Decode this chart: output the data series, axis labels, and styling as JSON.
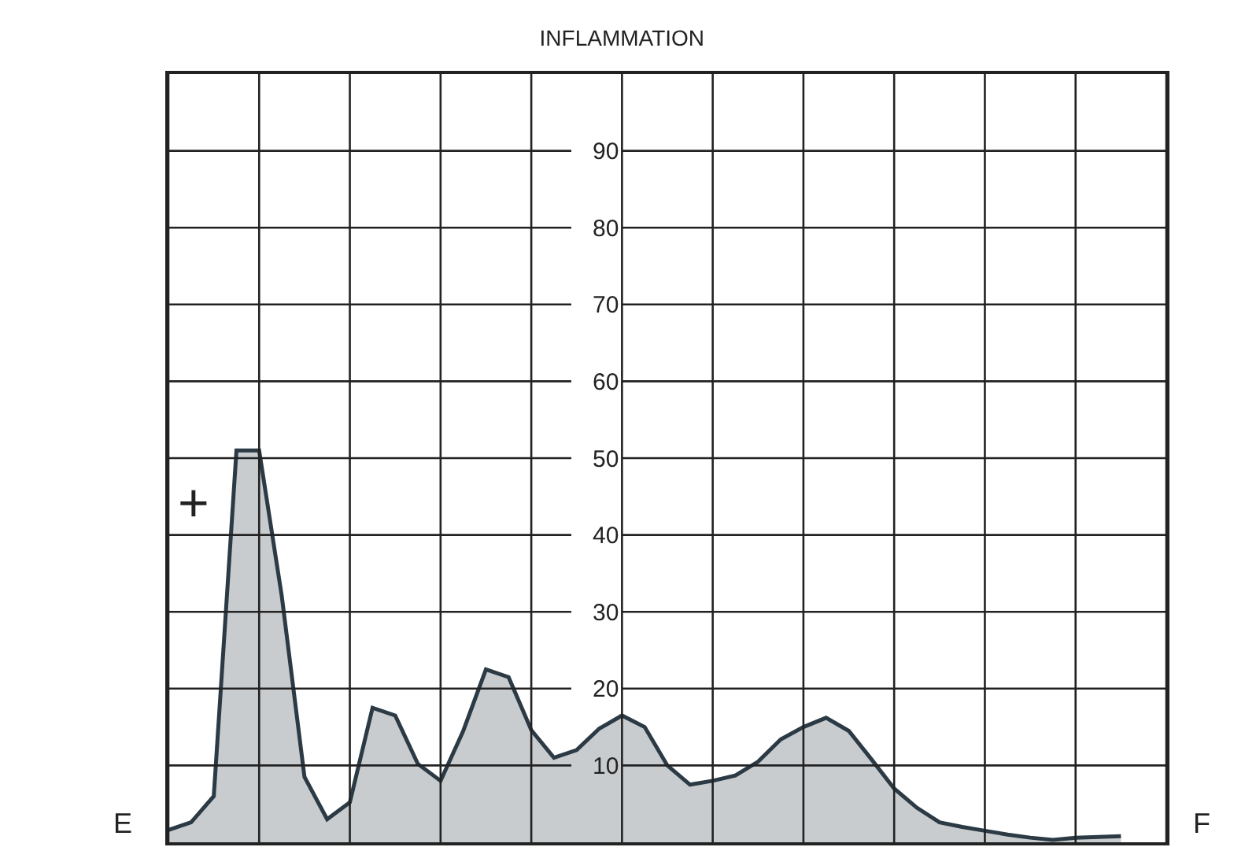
{
  "chart_data": {
    "type": "area",
    "title": "INFLAMMATION",
    "categories": [
      null,
      null,
      null,
      null,
      null,
      null,
      null,
      null,
      null,
      null,
      null,
      null,
      null,
      null,
      null,
      null,
      null,
      null,
      null,
      null,
      null,
      null,
      null,
      null,
      null,
      null,
      null,
      null,
      null,
      null,
      null,
      null,
      null,
      null,
      null,
      null,
      null,
      null,
      null,
      null,
      null,
      null,
      null,
      null,
      null
    ],
    "series": [
      {
        "color": "#2b3a44",
        "values": [
          1.6,
          2.6,
          6,
          51,
          51,
          32,
          8.5,
          3,
          5.2,
          17.5,
          16.5,
          10.2,
          8,
          14.5,
          22.5,
          21.5,
          14.6,
          11,
          12,
          14.8,
          16.5,
          15,
          10,
          7.5,
          8,
          8.7,
          10.5,
          13.4,
          15,
          16.2,
          14.5,
          10.8,
          7,
          4.5,
          2.6,
          2,
          1.5,
          1,
          0.6,
          0.3,
          0.6,
          0.7,
          0.8,
          null,
          null
        ]
      }
    ],
    "ylim": [
      0,
      100
    ],
    "yticks": [
      10,
      20,
      30,
      40,
      50,
      60,
      70,
      80,
      90
    ],
    "grid": true,
    "tick_labels": "y",
    "marker": "none",
    "line_style": "solid",
    "annotations": [
      "E",
      "F",
      "+"
    ]
  }
}
